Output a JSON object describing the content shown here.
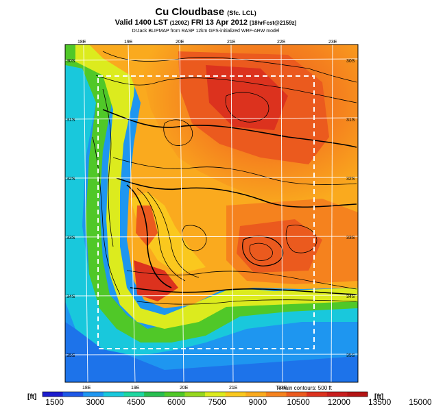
{
  "title": {
    "main": "Cu Cloudbase",
    "qualifier": "(Sfc. LCL)",
    "valid_a": "Valid 1400 LST",
    "valid_b": "(1200Z)",
    "valid_c": "FRI 13 Apr 2012",
    "valid_d": "[18hrFcst@2159z]",
    "source": "DrJack BLIPMAP from RASP 12km GFS-initialized WRF-ARW model"
  },
  "map": {
    "lon_labels_top": [
      "18E",
      "19E",
      "20E",
      "21E",
      "22E",
      "23E"
    ],
    "lon_labels_bottom": [
      "18E",
      "19E",
      "20E",
      "21E",
      "22E"
    ],
    "lat_labels_left": [
      "30S",
      "31S",
      "32S",
      "33S",
      "34S",
      "35S"
    ],
    "lat_labels_right": [
      "30S",
      "31S",
      "32S",
      "33S",
      "34S",
      "35S"
    ],
    "contour_note": "Terrain contours: 500 ft"
  },
  "colorbar": {
    "unit_left": "[ft]",
    "unit_right": "[ft]",
    "ticks": [
      "1500",
      "3000",
      "4500",
      "6000",
      "7500",
      "9000",
      "10500",
      "12000",
      "13500",
      "15000"
    ],
    "colors": [
      "#1c1ccd",
      "#1e58e6",
      "#1e96f0",
      "#19c8dc",
      "#1ed7a0",
      "#28be50",
      "#50c828",
      "#96d71e",
      "#dceb1e",
      "#fac81e",
      "#faaa1e",
      "#f5821e",
      "#eb5a1e",
      "#dc321e",
      "#c81e1e",
      "#b41414"
    ]
  }
}
